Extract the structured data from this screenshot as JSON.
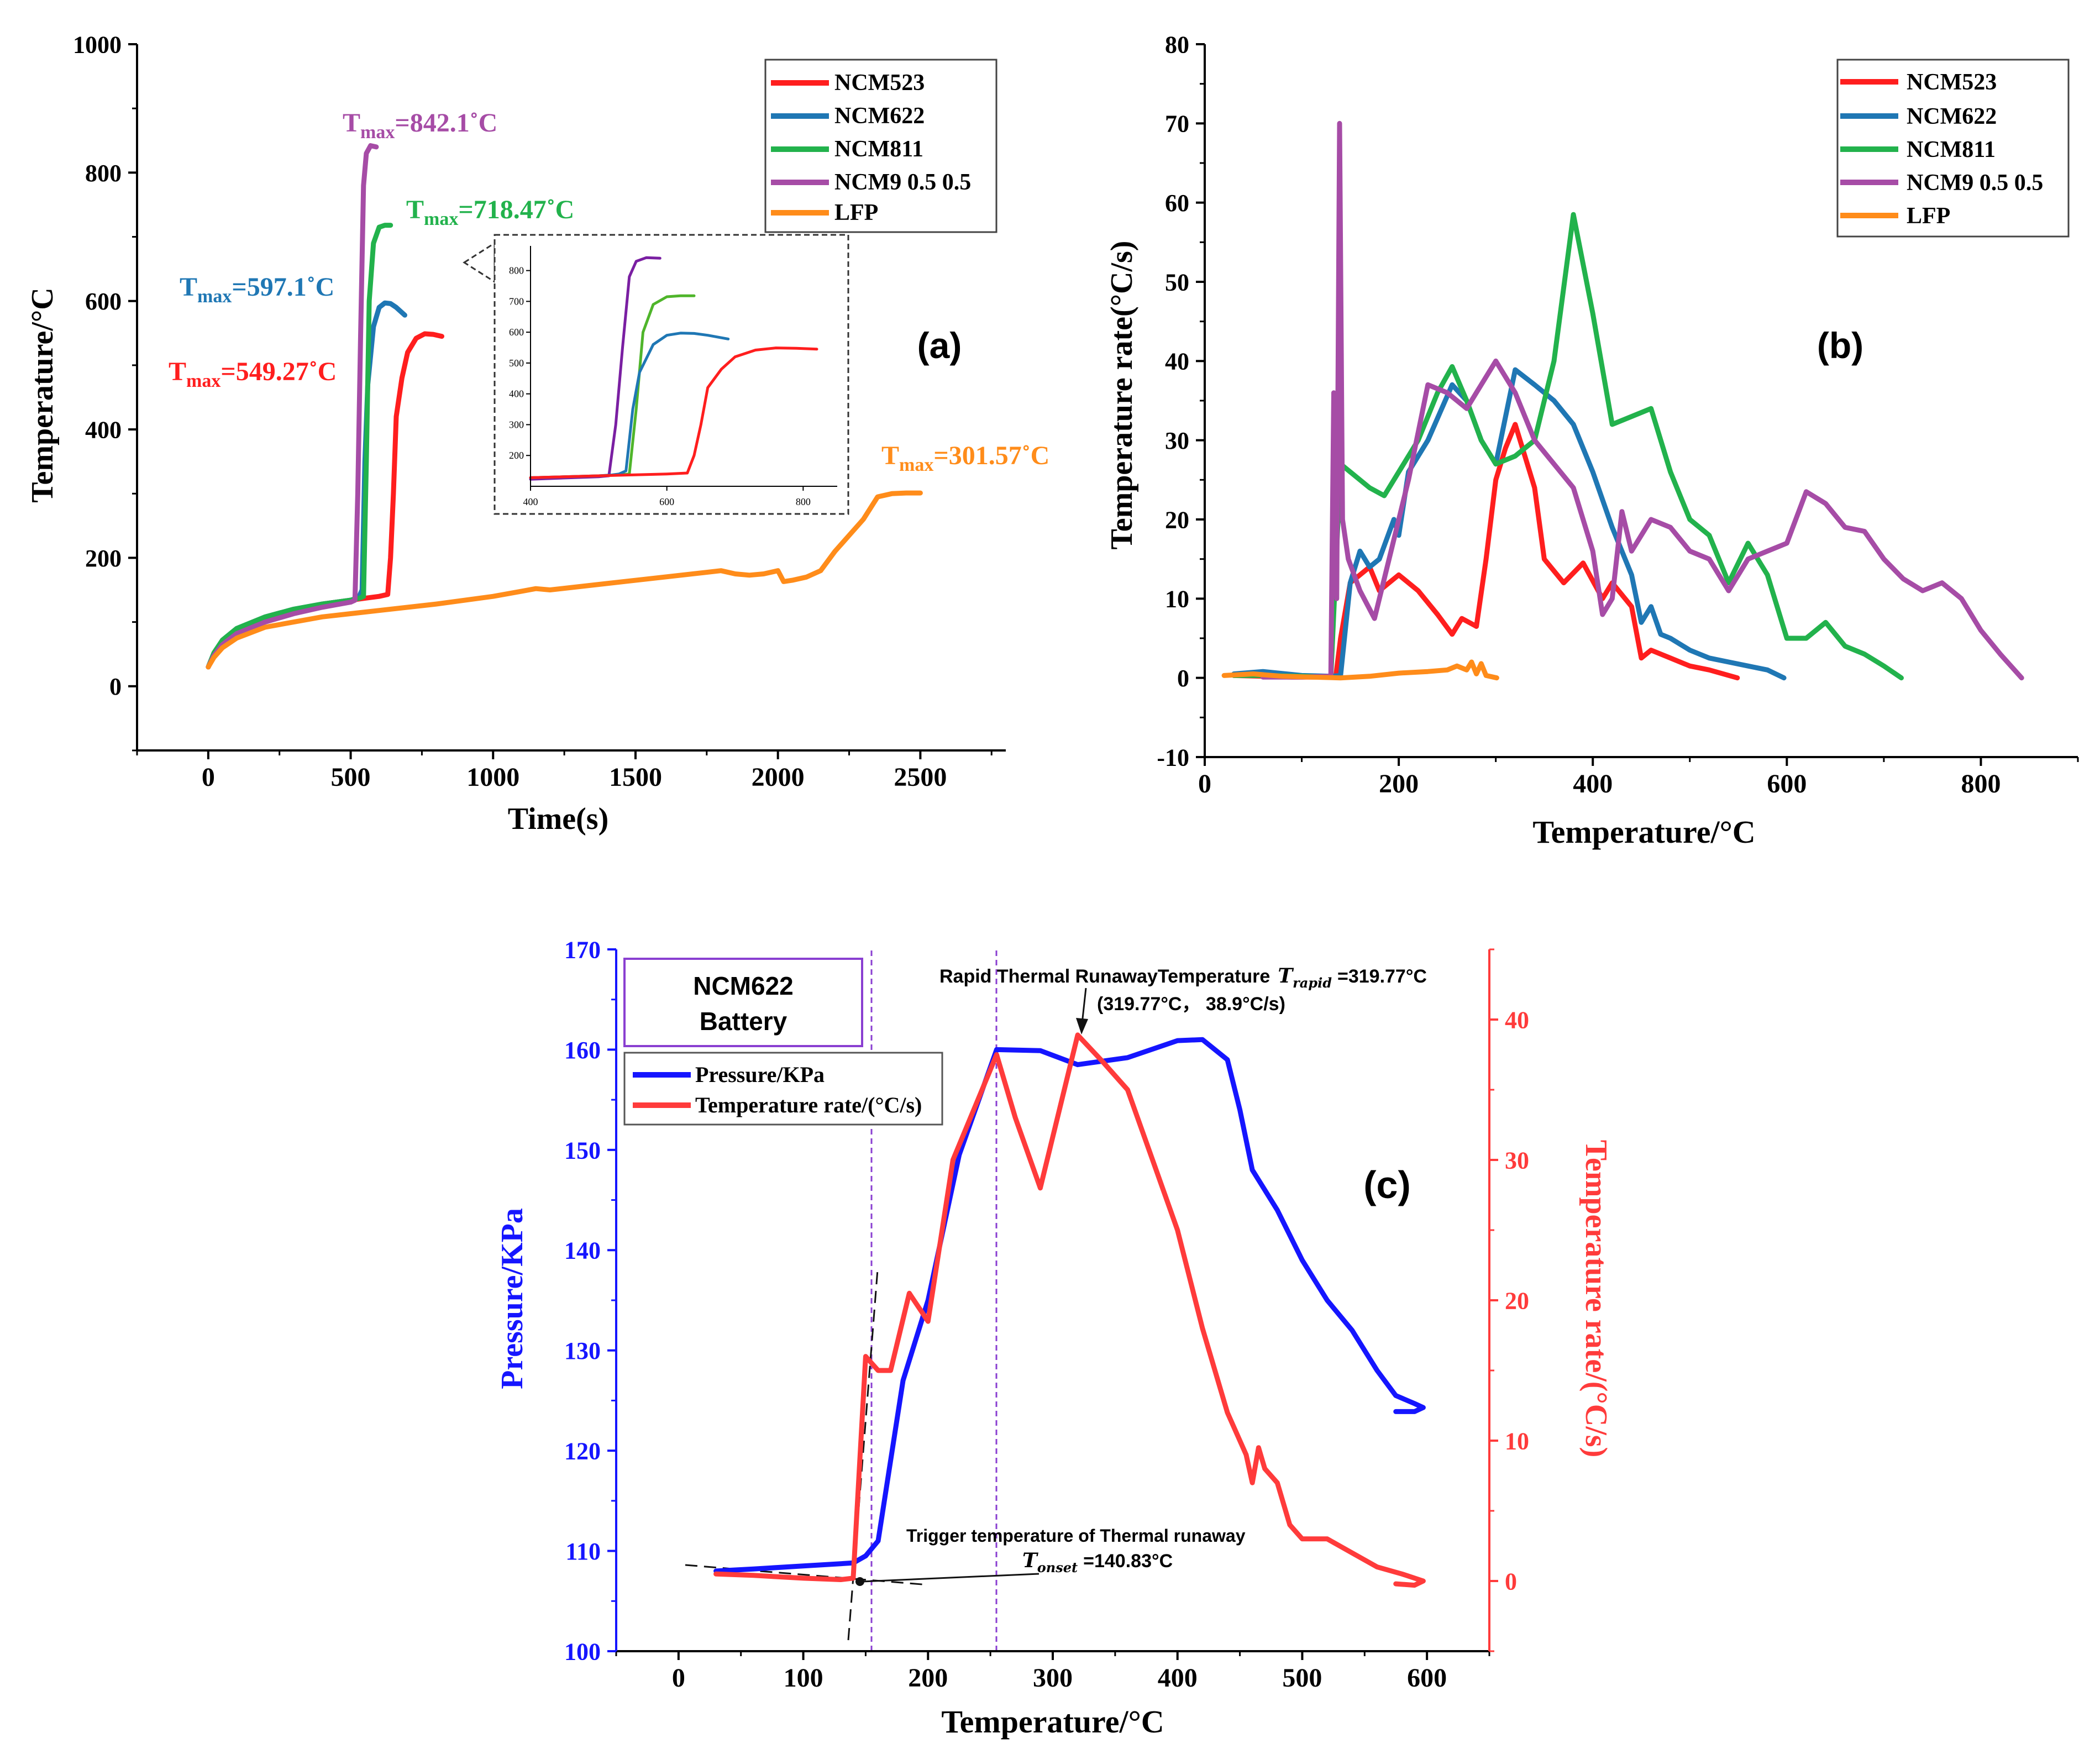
{
  "panel_tags": [
    "(a)",
    "(b)",
    "(c)"
  ],
  "chart_data": [
    {
      "type": "line",
      "panel": "(a)",
      "xlabel": "Time(s)",
      "ylabel": "Temperature/°C",
      "xlim": [
        -250,
        2800
      ],
      "ylim": [
        -100,
        1000
      ],
      "xticks": [
        0,
        500,
        1000,
        1500,
        2000,
        2500
      ],
      "yticks": [
        0,
        200,
        400,
        600,
        800,
        1000
      ],
      "grid": false,
      "legend_position": "top-right",
      "series": [
        {
          "name": "NCM523",
          "color": "#ff1e1e",
          "x": [
            0,
            20,
            50,
            100,
            200,
            300,
            400,
            500,
            550,
            600,
            630,
            640,
            650,
            660,
            680,
            700,
            730,
            760,
            790,
            820
          ],
          "y": [
            30,
            50,
            70,
            88,
            105,
            118,
            128,
            134,
            137,
            140,
            143,
            200,
            300,
            420,
            480,
            520,
            542,
            549,
            548,
            545
          ]
        },
        {
          "name": "NCM622",
          "color": "#1f77b4",
          "x": [
            0,
            20,
            50,
            100,
            200,
            300,
            400,
            500,
            520,
            530,
            540,
            550,
            560,
            580,
            600,
            620,
            640,
            660,
            690
          ],
          "y": [
            30,
            52,
            72,
            90,
            108,
            120,
            128,
            134,
            137,
            140,
            150,
            350,
            470,
            560,
            590,
            597,
            596,
            590,
            578
          ]
        },
        {
          "name": "NCM811",
          "color": "#22b24c",
          "x": [
            0,
            20,
            50,
            100,
            200,
            300,
            400,
            500,
            530,
            545,
            555,
            565,
            580,
            600,
            620,
            640
          ],
          "y": [
            30,
            52,
            72,
            90,
            108,
            120,
            128,
            134,
            137,
            140,
            350,
            600,
            690,
            715,
            718,
            718
          ]
        },
        {
          "name": "NCM9 0.5 0.5",
          "color": "#a64ca6",
          "x": [
            0,
            20,
            50,
            100,
            200,
            300,
            400,
            500,
            515,
            525,
            535,
            545,
            555,
            570,
            590
          ],
          "y": [
            30,
            48,
            65,
            82,
            100,
            113,
            123,
            131,
            134,
            300,
            550,
            780,
            830,
            842,
            840
          ]
        },
        {
          "name": "LFP",
          "color": "#ff8c1a",
          "x": [
            0,
            20,
            50,
            100,
            200,
            400,
            600,
            800,
            1000,
            1100,
            1150,
            1200,
            1400,
            1600,
            1800,
            1850,
            1900,
            1950,
            2000,
            2020,
            2050,
            2100,
            2150,
            2200,
            2250,
            2300,
            2350,
            2400,
            2450,
            2500
          ],
          "y": [
            30,
            45,
            60,
            75,
            92,
            108,
            118,
            128,
            140,
            148,
            152,
            150,
            160,
            170,
            180,
            175,
            173,
            175,
            180,
            163,
            165,
            170,
            180,
            210,
            235,
            260,
            295,
            300,
            301,
            301
          ]
        }
      ],
      "annotations": [
        {
          "base": "T",
          "sub": "max",
          "value": "=842.1˚C",
          "color": "#a64ca6"
        },
        {
          "base": "T",
          "sub": "max",
          "value": "=718.47˚C",
          "color": "#22b24c"
        },
        {
          "base": "T",
          "sub": "max",
          "value": "=597.1˚C",
          "color": "#1f77b4"
        },
        {
          "base": "T",
          "sub": "max",
          "value": "=549.27˚C",
          "color": "#ff1e1e"
        },
        {
          "base": "T",
          "sub": "max",
          "value": "=301.57˚C",
          "color": "#ff8c1a"
        }
      ],
      "inset": {
        "xlim": [
          400,
          850
        ],
        "ylim": [
          100,
          880
        ],
        "xticks": [
          400,
          600,
          800
        ],
        "yticks": [
          200,
          300,
          400,
          500,
          600,
          700,
          800
        ]
      }
    },
    {
      "type": "line",
      "panel": "(b)",
      "xlabel": "Temperature/°C",
      "ylabel": "Temperature rate(°C/s)",
      "xlim": [
        0,
        900
      ],
      "ylim": [
        -10,
        80
      ],
      "xticks": [
        0,
        200,
        400,
        600,
        800
      ],
      "yticks": [
        -10,
        0,
        10,
        20,
        30,
        40,
        50,
        60,
        70,
        80
      ],
      "grid": false,
      "legend_position": "top-right",
      "series": [
        {
          "name": "NCM523",
          "color": "#ff1e1e",
          "x": [
            30,
            60,
            90,
            120,
            135,
            140,
            150,
            170,
            180,
            200,
            220,
            240,
            255,
            265,
            280,
            290,
            300,
            310,
            320,
            340,
            350,
            370,
            390,
            410,
            420,
            440,
            450,
            460,
            480,
            500,
            520,
            549
          ],
          "y": [
            0.3,
            0.2,
            0.1,
            0.1,
            0.1,
            5,
            12,
            14,
            11,
            13,
            11,
            8,
            5.5,
            7.5,
            6.5,
            15,
            25,
            29,
            32,
            24,
            15,
            12,
            14.5,
            10,
            12,
            9,
            2.5,
            3.5,
            2.5,
            1.5,
            1,
            0
          ]
        },
        {
          "name": "NCM622",
          "color": "#1f77b4",
          "x": [
            30,
            60,
            100,
            130,
            140,
            150,
            160,
            170,
            180,
            195,
            200,
            210,
            230,
            255,
            270,
            285,
            300,
            320,
            340,
            360,
            380,
            400,
            420,
            440,
            450,
            460,
            470,
            480,
            500,
            520,
            540,
            560,
            580,
            597
          ],
          "y": [
            0.5,
            0.8,
            0.3,
            0.2,
            0.3,
            12,
            16,
            14,
            15,
            20,
            18,
            26,
            30,
            37,
            35,
            30,
            27,
            38.9,
            37,
            35,
            32,
            26,
            19,
            13,
            7,
            9,
            5.5,
            5,
            3.5,
            2.5,
            2,
            1.5,
            1,
            0
          ]
        },
        {
          "name": "NCM811",
          "color": "#22b24c",
          "x": [
            30,
            60,
            100,
            130,
            140,
            150,
            170,
            185,
            200,
            220,
            240,
            255,
            270,
            285,
            300,
            320,
            340,
            360,
            380,
            400,
            420,
            440,
            460,
            480,
            500,
            520,
            540,
            560,
            580,
            600,
            620,
            640,
            660,
            680,
            700,
            718
          ],
          "y": [
            0.3,
            0.3,
            0.2,
            0.1,
            27,
            26,
            24,
            23,
            26,
            30,
            36,
            39.3,
            35,
            30,
            27,
            28,
            30,
            40,
            58.5,
            46,
            32,
            33,
            34,
            26,
            20,
            18,
            12,
            17,
            13,
            5,
            5,
            7,
            4,
            3,
            1.5,
            0
          ]
        },
        {
          "name": "NCM9 0.5 0.5",
          "color": "#a64ca6",
          "x": [
            60,
            100,
            130,
            133,
            136,
            139,
            142,
            148,
            160,
            175,
            190,
            210,
            230,
            250,
            270,
            285,
            300,
            320,
            340,
            360,
            380,
            400,
            410,
            420,
            430,
            440,
            460,
            480,
            500,
            520,
            540,
            560,
            580,
            600,
            620,
            640,
            660,
            680,
            700,
            720,
            740,
            760,
            780,
            800,
            820,
            842
          ],
          "y": [
            0.1,
            0.1,
            0.2,
            36,
            10,
            70,
            20,
            15,
            11,
            7.5,
            15,
            25,
            37,
            36,
            34,
            37,
            40,
            36,
            30,
            27,
            24,
            16,
            8,
            10,
            21,
            16,
            20,
            19,
            16,
            15,
            11,
            15,
            16,
            17,
            23.5,
            22,
            19,
            18.5,
            15,
            12.5,
            11,
            12,
            10,
            6,
            3,
            0
          ]
        },
        {
          "name": "LFP",
          "color": "#ff8c1a",
          "x": [
            20,
            50,
            80,
            110,
            140,
            170,
            200,
            230,
            250,
            260,
            270,
            275,
            280,
            285,
            290,
            301
          ],
          "y": [
            0.3,
            0.5,
            0.2,
            0.1,
            0,
            0.2,
            0.6,
            0.8,
            1.0,
            1.5,
            1.0,
            2.0,
            0.5,
            1.8,
            0.3,
            0
          ]
        }
      ]
    },
    {
      "type": "line",
      "panel": "(c)",
      "xlabel": "Temperature/°C",
      "ylabel_left": "Pressure/KPa",
      "ylabel_right": "Temperature rate/(°C/s)",
      "xlim": [
        -50,
        650
      ],
      "ylim_left": [
        100,
        170
      ],
      "ylim_right": [
        -5,
        45
      ],
      "xticks": [
        0,
        100,
        200,
        300,
        400,
        500,
        600
      ],
      "yticks_left": [
        100,
        110,
        120,
        130,
        140,
        150,
        160,
        170
      ],
      "yticks_right": [
        0,
        10,
        20,
        30,
        40
      ],
      "grid": false,
      "legend_position": "top-left",
      "box_label": [
        "NCM622",
        "Battery"
      ],
      "series": [
        {
          "name": "Pressure/KPa",
          "color": "#1515ff",
          "axis": "left",
          "x": [
            30,
            60,
            100,
            140,
            150,
            160,
            180,
            200,
            225,
            255,
            290,
            320,
            360,
            400,
            420,
            440,
            450,
            460,
            480,
            500,
            520,
            540,
            560,
            575,
            590,
            597,
            590,
            575
          ],
          "y": [
            108,
            108.2,
            108.5,
            108.8,
            109.5,
            111,
            127,
            135,
            149.5,
            160,
            159.9,
            158.5,
            159.2,
            160.9,
            161,
            159,
            154,
            148,
            144,
            139,
            135,
            132,
            128,
            125.5,
            124.7,
            124.3,
            123.9,
            123.9
          ]
        },
        {
          "name": "Temperature rate/(°C/s)",
          "color": "#ff3b3b",
          "axis": "right",
          "x": [
            30,
            60,
            100,
            130,
            140,
            150,
            160,
            170,
            185,
            200,
            220,
            255,
            270,
            290,
            320,
            340,
            360,
            380,
            400,
            420,
            440,
            455,
            460,
            465,
            470,
            480,
            490,
            500,
            520,
            540,
            560,
            580,
            597,
            590,
            575
          ],
          "y": [
            0.5,
            0.4,
            0.2,
            0.1,
            0.2,
            16,
            15,
            15,
            20.5,
            18.5,
            30,
            37.5,
            33,
            28,
            38.9,
            37,
            35,
            30,
            25,
            18,
            12,
            9,
            7,
            9.5,
            8,
            7,
            4,
            3,
            3,
            2,
            1,
            0.5,
            0,
            -0.3,
            -0.2
          ]
        }
      ],
      "annotations": [
        {
          "text": "Rapid Thermal RunawayTemperature",
          "sym": "T",
          "sub": "rapid",
          "value": "=319.77°C"
        },
        {
          "text": "(319.77°C， 38.9°C/s)"
        },
        {
          "text": "Trigger temperature of Thermal runaway"
        },
        {
          "sym": "T",
          "sub": "onset",
          "value": "=140.83°C"
        }
      ]
    }
  ]
}
